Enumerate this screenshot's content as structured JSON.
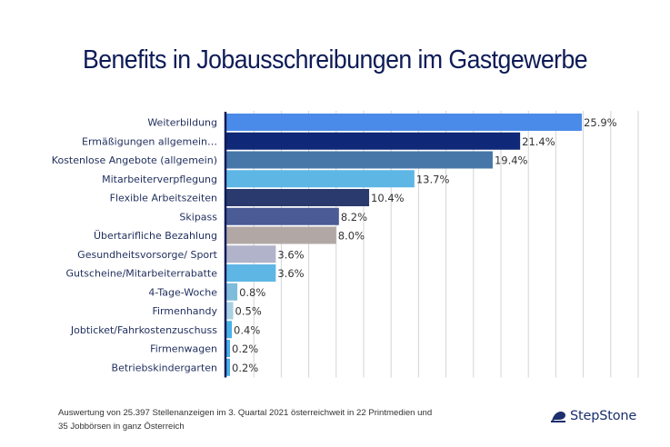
{
  "chart_data": {
    "type": "bar",
    "orientation": "horizontal",
    "title": "Benefits in Jobausschreibungen im Gastgewerbe",
    "xlabel": "",
    "ylabel": "",
    "xlim": [
      0,
      30
    ],
    "grid": true,
    "grid_step": 2,
    "value_suffix": "%",
    "categories": [
      "Weiterbildung",
      "Ermäßigungen allgemein…",
      "Kostenlose Angebote (allgemein)",
      "Mitarbeiterverpflegung",
      "Flexible Arbeitszeiten",
      "Skipass",
      "Übertarifliche Bezahlung",
      "Gesundheitsvorsorge/ Sport",
      "Gutscheine/Mitarbeiterrabatte",
      "4-Tage-Woche",
      "Firmenhandy",
      "Jobticket/Fahrkostenzuschuss",
      "Firmenwagen",
      "Betriebskindergarten"
    ],
    "values": [
      25.9,
      21.4,
      19.4,
      13.7,
      10.4,
      8.2,
      8.0,
      3.6,
      3.6,
      0.8,
      0.5,
      0.4,
      0.2,
      0.2
    ],
    "value_labels": [
      "25.9%",
      "21.4%",
      "19.4%",
      "13.7%",
      "10.4%",
      "8.2%",
      "8.0%",
      "3.6%",
      "3.6%",
      "0.8%",
      "0.5%",
      "0.4%",
      "0.2%",
      "0.2%"
    ],
    "colors": [
      "#4a8ae8",
      "#0f2877",
      "#4677a8",
      "#5eb6e4",
      "#2b3a6e",
      "#4a5b96",
      "#b1a8a6",
      "#b0b3c9",
      "#5eb6e4",
      "#7fbcdc",
      "#a9d0e4",
      "#4ab1e6",
      "#4ab1e6",
      "#4ab1e6"
    ],
    "axis_color": "#0d1b57",
    "grid_color": "#d3d3dd"
  },
  "footer": {
    "line1": "Auswertung von 25.397 Stellenanzeigen im 3. Quartal 2021 österreichweit in 22 Printmedien und",
    "line2": "35 Jobbörsen in ganz Österreich"
  },
  "brand": {
    "name": "StepStone",
    "icon": "stepstone-logo-icon",
    "color": "#1c2f6e"
  }
}
